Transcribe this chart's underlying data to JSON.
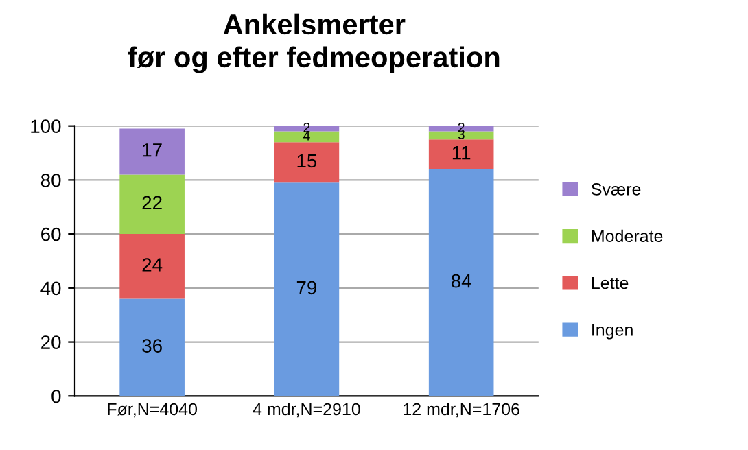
{
  "chart_data": {
    "type": "bar",
    "stacked": true,
    "title": "Ankelsmerter\nfør og efter fedmeoperation",
    "categories": [
      "Før,N=4040",
      "4 mdr,N=2910",
      "12 mdr,N=1706"
    ],
    "series": [
      {
        "name": "Ingen",
        "color": "#6a9be0",
        "values": [
          36,
          79,
          84
        ]
      },
      {
        "name": "Lette",
        "color": "#e35a5a",
        "values": [
          24,
          15,
          11
        ]
      },
      {
        "name": "Moderate",
        "color": "#9dd352",
        "values": [
          22,
          4,
          3
        ]
      },
      {
        "name": "Svære",
        "color": "#9b80cf",
        "values": [
          17,
          2,
          2
        ]
      }
    ],
    "ylim": [
      0,
      100
    ],
    "yticks": [
      0,
      20,
      40,
      60,
      80,
      100
    ],
    "grid": "y",
    "legend": "right",
    "data_labels": true
  }
}
